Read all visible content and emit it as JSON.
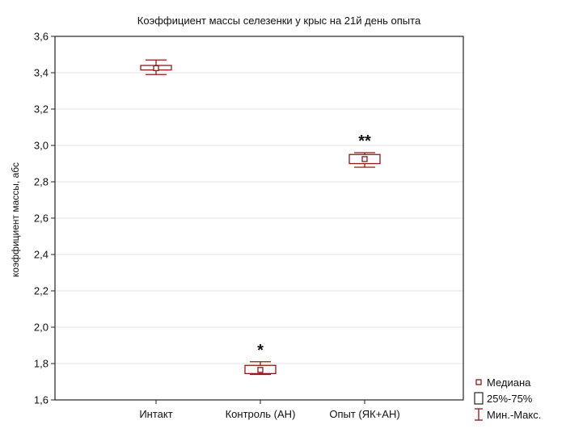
{
  "chart_data": {
    "type": "box",
    "title": "Коэффициент массы селезенки у крыс на 21й день опыта",
    "ylabel": "коэффициент массы, абс",
    "xlabel": "",
    "ylim": [
      1.6,
      3.6
    ],
    "yticks": [
      1.6,
      1.8,
      2.0,
      2.2,
      2.4,
      2.6,
      2.8,
      3.0,
      3.2,
      3.4,
      3.6
    ],
    "ytick_labels": [
      "1,6",
      "1,8",
      "2,0",
      "2,2",
      "2,4",
      "2,6",
      "2,8",
      "3,0",
      "3,2",
      "3,4",
      "3,6"
    ],
    "grid": true,
    "legend_position": "bottom-right",
    "series_color": "#8b1a1a",
    "groups": [
      {
        "label": "Интакт",
        "min": 3.39,
        "q1": 3.415,
        "median": 3.425,
        "q3": 3.44,
        "max": 3.47,
        "annotation": ""
      },
      {
        "label": "Контроль (АН)",
        "min": 1.74,
        "q1": 1.745,
        "median": 1.765,
        "q3": 1.79,
        "max": 1.81,
        "annotation": "*"
      },
      {
        "label": "Опыт (ЯК+АН)",
        "min": 2.88,
        "q1": 2.9,
        "median": 2.925,
        "q3": 2.95,
        "max": 2.96,
        "annotation": "**"
      }
    ],
    "legend": [
      {
        "label": "Медиана",
        "symbol": "median"
      },
      {
        "label": "25%-75%",
        "symbol": "box"
      },
      {
        "label": "Мин.-Макс.",
        "symbol": "whisker"
      }
    ]
  }
}
